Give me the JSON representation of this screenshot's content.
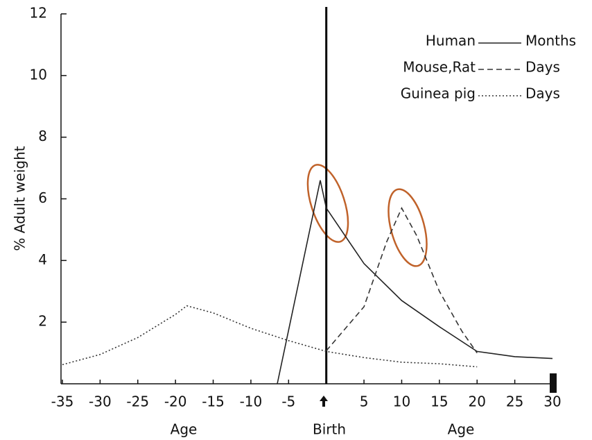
{
  "chart_data": {
    "type": "line",
    "y_label": "% Adult weight",
    "bottom_labels": [
      "Age",
      "Birth",
      "Age"
    ],
    "xlim": [
      -35,
      30
    ],
    "ylim": [
      0,
      12
    ],
    "xticks": [
      -35,
      -30,
      -25,
      -20,
      -15,
      -10,
      -5,
      5,
      10,
      15,
      20,
      25,
      30
    ],
    "yticks": [
      2,
      4,
      6,
      8,
      10,
      12
    ],
    "vline_x": 0,
    "series": [
      {
        "name": "Human",
        "unit": "Months",
        "color": "#222",
        "dash": "solid",
        "x": [
          -6.5,
          -0.8,
          0,
          5,
          10,
          15,
          20,
          25,
          30
        ],
        "values": [
          0,
          6.6,
          5.7,
          3.9,
          2.7,
          1.85,
          1.05,
          0.88,
          0.82
        ]
      },
      {
        "name": "Mouse,Rat",
        "unit": "Days",
        "color": "#333",
        "dash": "dashed",
        "x": [
          0,
          5,
          8,
          10,
          12,
          15,
          18,
          20
        ],
        "values": [
          1.07,
          2.5,
          4.6,
          5.7,
          4.8,
          3.0,
          1.7,
          1.0
        ]
      },
      {
        "name": "Guinea pig",
        "unit": "Days",
        "color": "#333",
        "dash": "dotted",
        "x": [
          -35,
          -30,
          -25,
          -20,
          -18.5,
          -15,
          -10,
          -5,
          0,
          5,
          10,
          15,
          20
        ],
        "values": [
          0.62,
          0.95,
          1.5,
          2.25,
          2.53,
          2.3,
          1.8,
          1.4,
          1.05,
          0.85,
          0.7,
          0.65,
          0.55
        ]
      }
    ]
  }
}
